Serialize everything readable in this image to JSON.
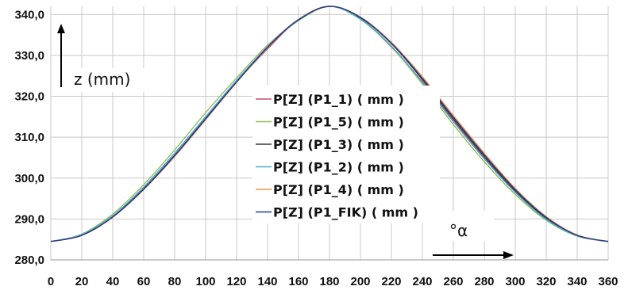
{
  "chart_data": {
    "type": "line",
    "xlim": [
      0,
      360
    ],
    "ylim": [
      280.0,
      342.0
    ],
    "x_ticks": [
      "0",
      "20",
      "40",
      "60",
      "80",
      "100",
      "120",
      "140",
      "160",
      "180",
      "200",
      "220",
      "240",
      "260",
      "280",
      "300",
      "320",
      "340",
      "360"
    ],
    "y_ticks": [
      "280,0",
      "290,0",
      "300,0",
      "310,0",
      "320,0",
      "330,0",
      "340,0"
    ],
    "ylabel": "z (mm)",
    "xlabel": "°α",
    "grid": true,
    "legend_position": "center",
    "x": [
      0,
      20,
      40,
      60,
      80,
      100,
      120,
      140,
      160,
      180,
      200,
      220,
      240,
      260,
      280,
      300,
      320,
      340,
      360
    ],
    "series": [
      {
        "name": "P[Z] (P1_1) ( mm )",
        "color": "#c0506e",
        "values": [
          284.5,
          286.1,
          290.5,
          297.3,
          305.3,
          314.3,
          323.5,
          331.6,
          338.8,
          342.0,
          339.0,
          332.0,
          323.6,
          314.1,
          305.0,
          296.6,
          290.0,
          285.9,
          284.5
        ]
      },
      {
        "name": "P[Z] (P1_5) ( mm )",
        "color": "#9bbb59",
        "values": [
          284.5,
          286.3,
          291.2,
          298.4,
          306.9,
          316.0,
          324.5,
          332.5,
          338.5,
          342.0,
          338.8,
          332.1,
          323.0,
          313.1,
          304.0,
          296.0,
          289.7,
          285.8,
          284.5
        ]
      },
      {
        "name": "P[Z] (P1_3) ( mm )",
        "color": "#3a3a3a",
        "values": [
          284.5,
          286.0,
          290.6,
          297.4,
          305.6,
          314.6,
          323.6,
          332.1,
          338.8,
          342.0,
          339.2,
          332.9,
          324.1,
          314.5,
          305.3,
          296.9,
          290.2,
          286.0,
          284.5
        ]
      },
      {
        "name": "P[Z] (P1_2) ( mm )",
        "color": "#4bacc6",
        "values": [
          284.5,
          286.2,
          290.8,
          297.8,
          306.1,
          315.0,
          323.9,
          332.1,
          338.6,
          342.0,
          338.9,
          332.3,
          323.4,
          313.8,
          304.7,
          296.5,
          289.9,
          285.9,
          284.5
        ]
      },
      {
        "name": "P[Z] (P1_4) ( mm )",
        "color": "#f79646",
        "values": [
          284.5,
          286.0,
          290.4,
          297.2,
          305.3,
          314.3,
          323.4,
          331.9,
          338.8,
          342.0,
          339.4,
          333.2,
          324.8,
          315.3,
          306.1,
          297.5,
          290.6,
          286.1,
          284.5
        ]
      },
      {
        "name": "P[Z] (P1_FIK) ( mm )",
        "color": "#1f3a93",
        "values": [
          284.5,
          286.0,
          290.5,
          297.3,
          305.5,
          314.5,
          323.5,
          332.0,
          338.7,
          342.0,
          339.3,
          333.0,
          324.4,
          314.9,
          305.7,
          297.2,
          290.4,
          286.0,
          284.5
        ]
      }
    ]
  }
}
